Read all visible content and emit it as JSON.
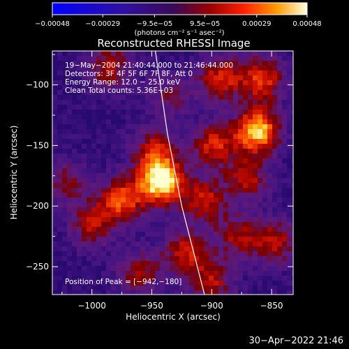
{
  "chart_data": {
    "type": "heatmap",
    "title": "Reconstructed RHESSI Image",
    "xlabel": "Heliocentric X (arcsec)",
    "ylabel": "Heliocentric Y (arcsec)",
    "xlim": [
      -1033,
      -832
    ],
    "ylim": [
      -273,
      -72
    ],
    "xticks": [
      -1000,
      -950,
      -900,
      -850
    ],
    "xtick_labels": [
      "−1000",
      "−950",
      "−900",
      "−850"
    ],
    "yticks": [
      -100,
      -150,
      -200,
      -250
    ],
    "ytick_labels": [
      "−100",
      "−150",
      "−200",
      "−250"
    ],
    "colorbar": {
      "min": -0.00048,
      "max": 0.00048,
      "ticks": [
        -0.00048,
        -0.00029,
        -9.5e-05,
        9.5e-05,
        0.00029,
        0.00048
      ],
      "tick_labels": [
        "−0.00048",
        "−0.00029",
        "−9.5e−05",
        "9.5e−05",
        "0.00029",
        "0.00048"
      ],
      "units_label": "(photons cm⁻² s⁻¹ asec⁻²)"
    },
    "annotations": [
      "19−May−2004 21:40:44.000 to 21:46:44.000",
      "Detectors: 3F 4F 5F 6F 7F 8F, Att 0",
      "Energy Range: 12.0 − 25.0 keV",
      "Clean     Total counts: 5.36E+03"
    ],
    "peak_label": "Position of Peak = [−942,−180]",
    "peak": [
      -942,
      -180
    ],
    "limb_curve": [
      [
        -947,
        -72
      ],
      [
        -937,
        -140
      ],
      [
        -925,
        -200
      ],
      [
        -906,
        -273
      ]
    ],
    "sources": [
      {
        "x": -942,
        "y": -180,
        "amp": 1.0
      },
      {
        "x": -948,
        "y": -155,
        "amp": 0.5
      },
      {
        "x": -862,
        "y": -138,
        "amp": 0.9
      },
      {
        "x": -858,
        "y": -95,
        "amp": 0.6
      },
      {
        "x": -893,
        "y": -95,
        "amp": 0.55
      },
      {
        "x": -985,
        "y": -85,
        "amp": 0.45
      },
      {
        "x": -975,
        "y": -195,
        "amp": 0.65
      },
      {
        "x": -1000,
        "y": -215,
        "amp": 0.45
      },
      {
        "x": -922,
        "y": -238,
        "amp": 0.5
      },
      {
        "x": -898,
        "y": -150,
        "amp": 0.55
      },
      {
        "x": -906,
        "y": -195,
        "amp": 0.5
      },
      {
        "x": -870,
        "y": -178,
        "amp": 0.45
      },
      {
        "x": -848,
        "y": -230,
        "amp": 0.5
      },
      {
        "x": -900,
        "y": -262,
        "amp": 0.45
      },
      {
        "x": -960,
        "y": -255,
        "amp": 0.4
      },
      {
        "x": -1020,
        "y": -180,
        "amp": 0.35
      },
      {
        "x": -880,
        "y": -225,
        "amp": 0.4
      },
      {
        "x": -935,
        "y": -110,
        "amp": 0.3
      }
    ]
  },
  "footer": {
    "timestamp": "30−Apr−2022 21:46"
  }
}
